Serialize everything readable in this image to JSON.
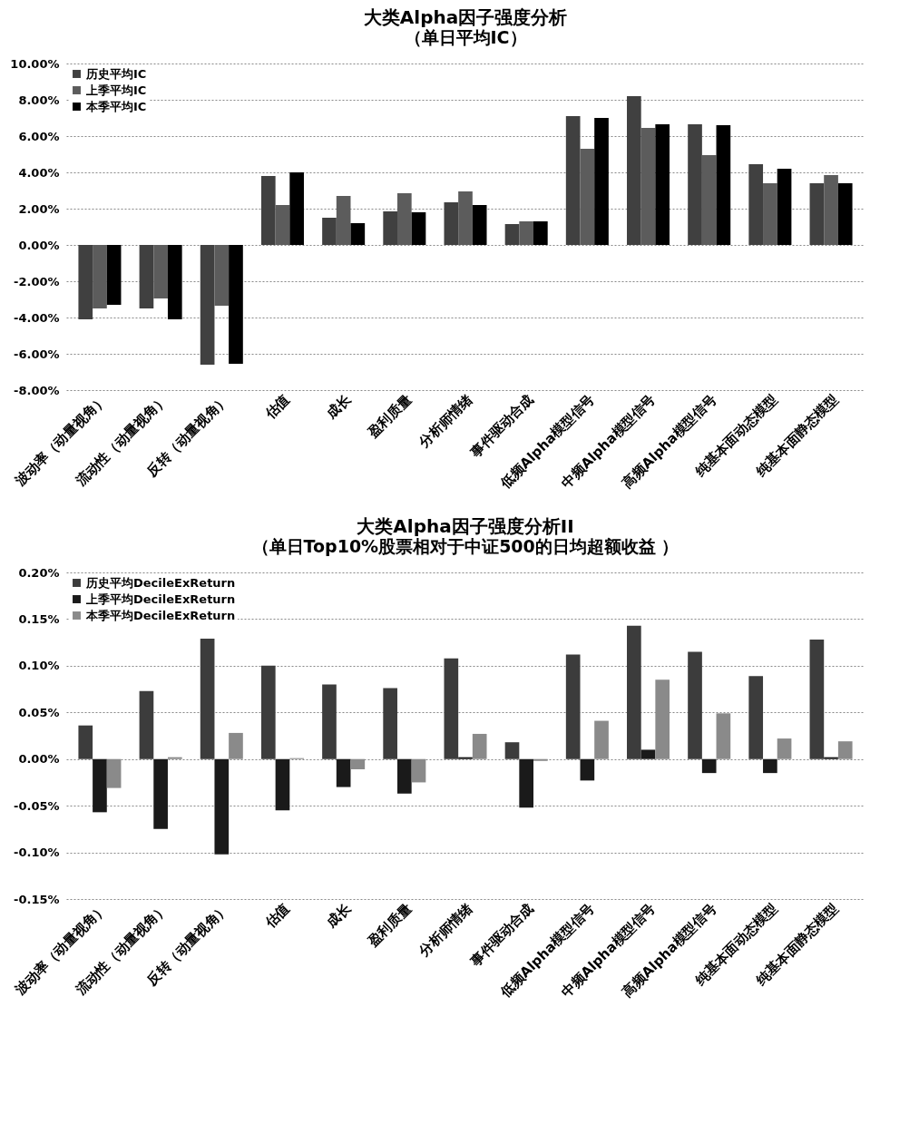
{
  "chart_data": [
    {
      "type": "bar",
      "title": "大类Alpha因子强度分析",
      "subtitle": "（单日平均IC）",
      "categories": [
        "波动率（动量视角）",
        "流动性（动量视角）",
        "反转（动量视角）",
        "估值",
        "成长",
        "盈利质量",
        "分析师情绪",
        "事件驱动合成",
        "低频Alpha模型信号",
        "中频Alpha模型信号",
        "高频Alpha模型信号",
        "纯基本面动态模型",
        "纯基本面静态模型"
      ],
      "series": [
        {
          "name": "历史平均IC",
          "color": "#404040",
          "values": [
            -4.1,
            -3.5,
            -6.6,
            3.8,
            1.5,
            1.85,
            2.35,
            1.15,
            7.1,
            8.2,
            6.65,
            4.45,
            3.4
          ]
        },
        {
          "name": "上季平均IC",
          "color": "#5c5c5c",
          "values": [
            -3.5,
            -2.95,
            -3.35,
            2.2,
            2.7,
            2.85,
            2.95,
            1.3,
            5.3,
            6.45,
            4.95,
            3.4,
            3.85
          ]
        },
        {
          "name": "本季平均IC",
          "color": "#000000",
          "values": [
            -3.3,
            -4.1,
            -6.55,
            4.0,
            1.2,
            1.8,
            2.2,
            1.3,
            7.0,
            6.65,
            6.6,
            4.2,
            3.4
          ]
        }
      ],
      "ylim": [
        -8,
        10
      ],
      "yticks": [
        {
          "value": -8,
          "label": "-8.00%"
        },
        {
          "value": -6,
          "label": "-6.00%"
        },
        {
          "value": -4,
          "label": "-4.00%"
        },
        {
          "value": -2,
          "label": "-2.00%"
        },
        {
          "value": 0,
          "label": "0.00%"
        },
        {
          "value": 2,
          "label": "2.00%"
        },
        {
          "value": 4,
          "label": "4.00%"
        },
        {
          "value": 6,
          "label": "6.00%"
        },
        {
          "value": 8,
          "label": "8.00%"
        },
        {
          "value": 10,
          "label": "10.00%"
        }
      ],
      "grid": "y",
      "legend": "top left"
    },
    {
      "type": "bar",
      "title": "大类Alpha因子强度分析II",
      "subtitle": "（单日Top10%股票相对于中证500的日均超额收益 ）",
      "categories": [
        "波动率（动量视角）",
        "流动性（动量视角）",
        "反转（动量视角）",
        "估值",
        "成长",
        "盈利质量",
        "分析师情绪",
        "事件驱动合成",
        "低频Alpha模型信号",
        "中频Alpha模型信号",
        "高频Alpha模型信号",
        "纯基本面动态模型",
        "纯基本面静态模型"
      ],
      "series": [
        {
          "name": "历史平均DecileExReturn",
          "color": "#3c3c3c",
          "values": [
            0.036,
            0.073,
            0.129,
            0.1,
            0.08,
            0.076,
            0.108,
            0.018,
            0.112,
            0.143,
            0.115,
            0.089,
            0.128
          ]
        },
        {
          "name": "上季平均DecileExReturn",
          "color": "#1a1a1a",
          "values": [
            -0.057,
            -0.075,
            -0.102,
            -0.055,
            -0.03,
            -0.037,
            0.002,
            -0.052,
            -0.023,
            0.01,
            -0.015,
            -0.015,
            0.002
          ]
        },
        {
          "name": "本季平均DecileExReturn",
          "color": "#8a8a8a",
          "values": [
            -0.031,
            0.002,
            0.028,
            0.001,
            -0.011,
            -0.025,
            0.027,
            -0.002,
            0.041,
            0.085,
            0.049,
            0.022,
            0.019
          ]
        }
      ],
      "ylim": [
        -0.15,
        0.2
      ],
      "yticks": [
        {
          "value": -0.15,
          "label": "-0.15%"
        },
        {
          "value": -0.1,
          "label": "-0.10%"
        },
        {
          "value": -0.05,
          "label": "-0.05%"
        },
        {
          "value": 0,
          "label": "0.00%"
        },
        {
          "value": 0.05,
          "label": "0.05%"
        },
        {
          "value": 0.1,
          "label": "0.10%"
        },
        {
          "value": 0.15,
          "label": "0.15%"
        },
        {
          "value": 0.2,
          "label": "0.20%"
        }
      ],
      "grid": "y",
      "legend": "top left"
    }
  ]
}
